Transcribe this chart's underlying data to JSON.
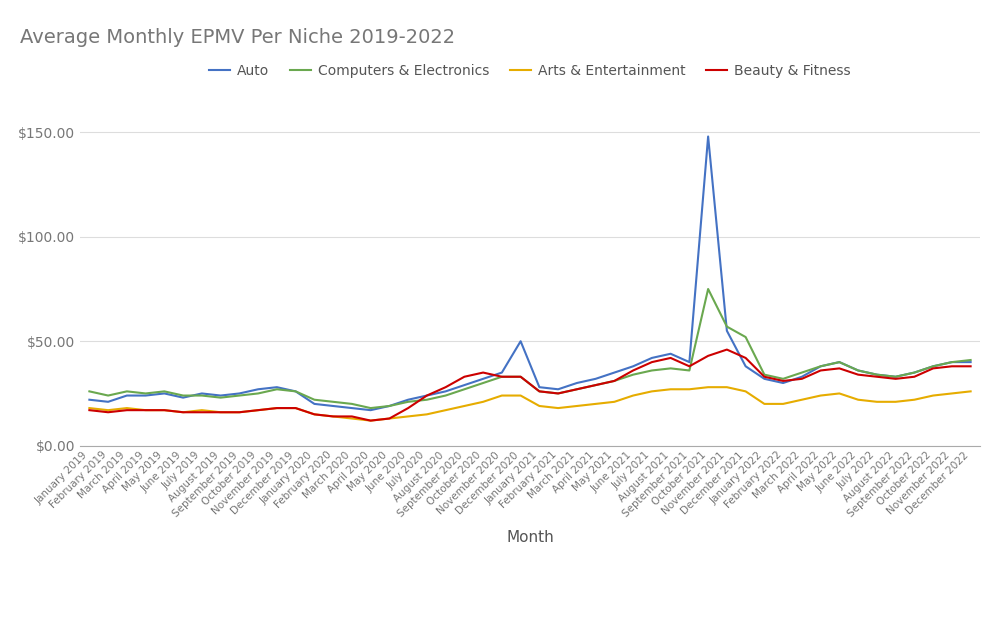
{
  "title": "Average Monthly EPMV Per Niche 2019-2022",
  "xlabel": "Month",
  "legend": [
    "Auto",
    "Computers & Electronics",
    "Arts & Entertainment",
    "Beauty & Fitness"
  ],
  "colors": [
    "#4472c4",
    "#6aa84f",
    "#e6ac00",
    "#cc0000"
  ],
  "ylim": [
    0,
    160
  ],
  "yticks": [
    0,
    50,
    100,
    150
  ],
  "ytick_labels": [
    "$0.00",
    "$50.00",
    "$100.00",
    "$150.00"
  ],
  "months": [
    "January 2019",
    "February 2019",
    "March 2019",
    "April 2019",
    "May 2019",
    "June 2019",
    "July 2019",
    "August 2019",
    "September 2019",
    "October 2019",
    "November 2019",
    "December 2019",
    "January 2020",
    "February 2020",
    "March 2020",
    "April 2020",
    "May 2020",
    "June 2020",
    "July 2020",
    "August 2020",
    "September 2020",
    "October 2020",
    "November 2020",
    "December 2020",
    "January 2021",
    "February 2021",
    "March 2021",
    "April 2021",
    "May 2021",
    "June 2021",
    "July 2021",
    "August 2021",
    "September 2021",
    "October 2021",
    "November 2021",
    "December 2021",
    "January 2022",
    "February 2022",
    "March 2022",
    "April 2022",
    "May 2022",
    "June 2022",
    "July 2022",
    "August 2022",
    "September 2022",
    "October 2022",
    "November 2022",
    "December 2022"
  ],
  "auto": [
    22,
    21,
    24,
    24,
    25,
    23,
    25,
    24,
    25,
    27,
    28,
    26,
    20,
    19,
    18,
    17,
    19,
    22,
    24,
    26,
    29,
    32,
    35,
    50,
    28,
    27,
    30,
    32,
    35,
    38,
    42,
    44,
    40,
    148,
    55,
    38,
    32,
    30,
    33,
    38,
    40,
    36,
    34,
    33,
    35,
    38,
    40,
    40
  ],
  "computers": [
    26,
    24,
    26,
    25,
    26,
    24,
    24,
    23,
    24,
    25,
    27,
    26,
    22,
    21,
    20,
    18,
    19,
    21,
    22,
    24,
    27,
    30,
    33,
    33,
    26,
    25,
    27,
    29,
    31,
    34,
    36,
    37,
    36,
    75,
    57,
    52,
    34,
    32,
    35,
    38,
    40,
    36,
    34,
    33,
    35,
    38,
    40,
    41
  ],
  "arts": [
    18,
    17,
    18,
    17,
    17,
    16,
    17,
    16,
    16,
    17,
    18,
    18,
    15,
    14,
    13,
    12,
    13,
    14,
    15,
    17,
    19,
    21,
    24,
    24,
    19,
    18,
    19,
    20,
    21,
    24,
    26,
    27,
    27,
    28,
    28,
    26,
    20,
    20,
    22,
    24,
    25,
    22,
    21,
    21,
    22,
    24,
    25,
    26
  ],
  "beauty": [
    17,
    16,
    17,
    17,
    17,
    16,
    16,
    16,
    16,
    17,
    18,
    18,
    15,
    14,
    14,
    12,
    13,
    18,
    24,
    28,
    33,
    35,
    33,
    33,
    26,
    25,
    27,
    29,
    31,
    36,
    40,
    42,
    38,
    43,
    46,
    42,
    33,
    31,
    32,
    36,
    37,
    34,
    33,
    32,
    33,
    37,
    38,
    38
  ]
}
